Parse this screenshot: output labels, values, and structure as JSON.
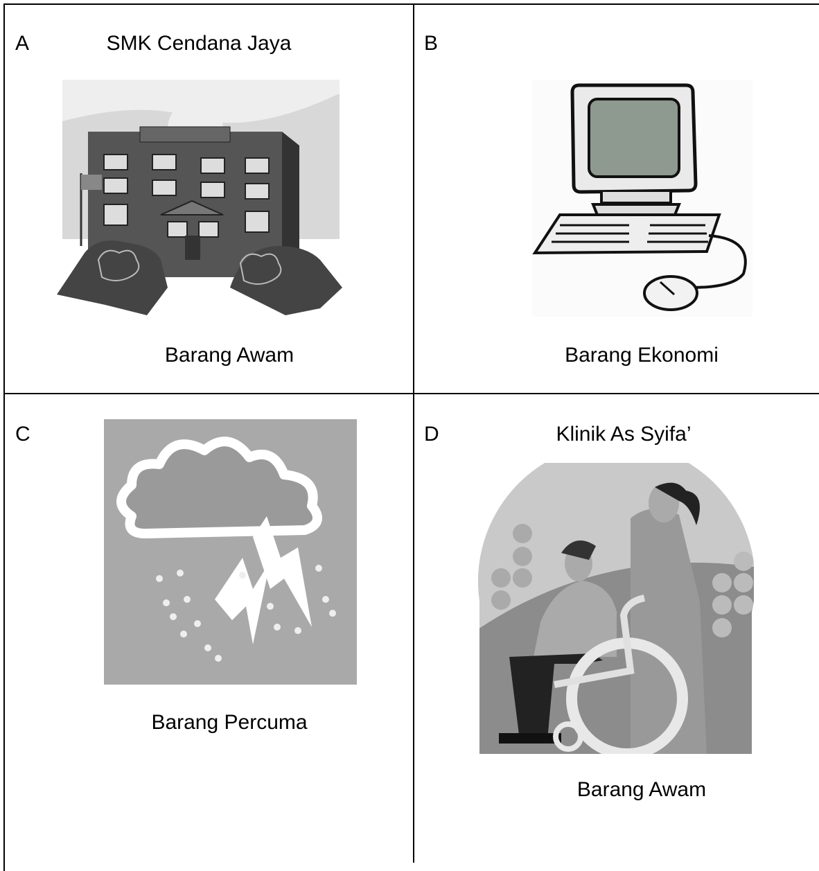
{
  "cells": [
    {
      "letter": "A",
      "title": "SMK Cendana Jaya",
      "caption": "Barang Awam"
    },
    {
      "letter": "B",
      "caption": "Barang Ekonomi"
    },
    {
      "letter": "C",
      "caption": "Barang Percuma"
    },
    {
      "letter": "D",
      "title": "Klinik As Syifa’",
      "caption": "Barang Awam"
    }
  ]
}
